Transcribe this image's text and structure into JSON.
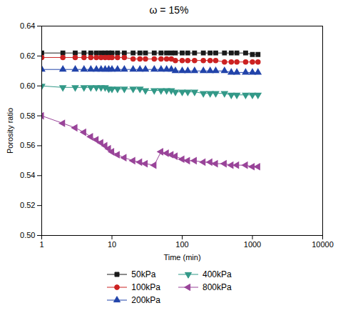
{
  "chart_data": {
    "type": "line",
    "title": "ω = 15%",
    "xlabel": "Time (min)",
    "ylabel": "Porosity ratio",
    "log": "x",
    "grid": false,
    "legend": "bottom",
    "xlim": [
      1,
      10000
    ],
    "ylim": [
      0.5,
      0.64
    ],
    "xticks": [
      1,
      10,
      100,
      1000,
      10000
    ],
    "yticks": [
      {
        "value": 0.5,
        "label": "0.50"
      },
      0.52,
      0.54,
      0.56,
      0.58,
      {
        "value": 0.6,
        "label": "0.60"
      },
      0.62,
      0.64
    ],
    "x": [
      1,
      2,
      3,
      4,
      5,
      6,
      7,
      8,
      9,
      10,
      12,
      15,
      20,
      25,
      30,
      40,
      50,
      60,
      70,
      80,
      100,
      120,
      150,
      200,
      250,
      300,
      400,
      500,
      600,
      800,
      1000,
      1200
    ],
    "series": [
      {
        "name": "50kPa",
        "color": "#1a1a1a",
        "marker": "square",
        "values": [
          0.622,
          0.622,
          0.622,
          0.622,
          0.622,
          0.622,
          0.622,
          0.622,
          0.622,
          0.622,
          0.622,
          0.622,
          0.622,
          0.622,
          0.622,
          0.622,
          0.622,
          0.622,
          0.622,
          0.622,
          0.622,
          0.622,
          0.622,
          0.622,
          0.622,
          0.622,
          0.622,
          0.622,
          0.622,
          0.622,
          0.621,
          0.621
        ]
      },
      {
        "name": "100kPa",
        "color": "#cc2222",
        "marker": "circle",
        "values": [
          0.619,
          0.619,
          0.619,
          0.619,
          0.619,
          0.619,
          0.619,
          0.619,
          0.619,
          0.619,
          0.619,
          0.619,
          0.618,
          0.618,
          0.618,
          0.618,
          0.618,
          0.618,
          0.618,
          0.617,
          0.617,
          0.617,
          0.617,
          0.617,
          0.617,
          0.617,
          0.616,
          0.616,
          0.616,
          0.616,
          0.616,
          0.616
        ]
      },
      {
        "name": "200kPa",
        "color": "#2244aa",
        "marker": "triangle-up",
        "values": [
          0.611,
          0.611,
          0.611,
          0.611,
          0.611,
          0.611,
          0.611,
          0.611,
          0.611,
          0.611,
          0.611,
          0.611,
          0.611,
          0.611,
          0.611,
          0.611,
          0.611,
          0.611,
          0.611,
          0.61,
          0.61,
          0.61,
          0.61,
          0.61,
          0.61,
          0.61,
          0.61,
          0.609,
          0.609,
          0.609,
          0.609,
          0.609
        ]
      },
      {
        "name": "400kPa",
        "color": "#339988",
        "marker": "triangle-down",
        "values": [
          0.6,
          0.599,
          0.599,
          0.599,
          0.599,
          0.599,
          0.599,
          0.599,
          0.598,
          0.598,
          0.598,
          0.598,
          0.598,
          0.598,
          0.597,
          0.597,
          0.597,
          0.597,
          0.597,
          0.596,
          0.596,
          0.596,
          0.596,
          0.595,
          0.595,
          0.595,
          0.595,
          0.594,
          0.594,
          0.594,
          0.594,
          0.594
        ]
      },
      {
        "name": "800kPa",
        "color": "#994499",
        "marker": "triangle-left",
        "values": [
          0.58,
          0.575,
          0.572,
          0.569,
          0.566,
          0.564,
          0.562,
          0.56,
          0.558,
          0.556,
          0.554,
          0.552,
          0.55,
          0.549,
          0.548,
          0.547,
          0.556,
          0.555,
          0.554,
          0.553,
          0.551,
          0.55,
          0.55,
          0.549,
          0.549,
          0.548,
          0.548,
          0.547,
          0.547,
          0.547,
          0.546,
          0.546
        ]
      }
    ]
  }
}
